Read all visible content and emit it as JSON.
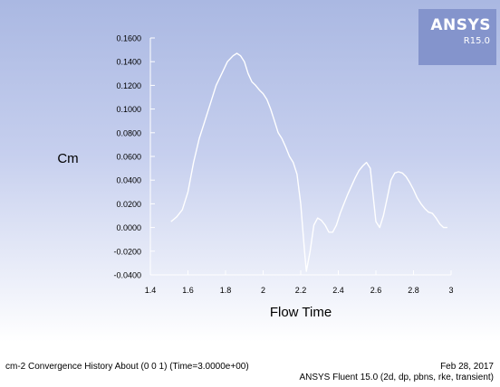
{
  "logo": {
    "brand": "ANSYS",
    "version": "R15.0"
  },
  "footer": {
    "left": "cm-2 Convergence History About (0 0 1)  (Time=3.0000e+00)",
    "date": "Feb 28, 2017",
    "product": "ANSYS Fluent 15.0 (2d, dp, pbns, rke, transient)"
  },
  "colors": {
    "background_top": "#aab8e2",
    "background_bottom": "#ffffff",
    "line": "#ffffff",
    "logo_bg": "#8494cc"
  },
  "chart_data": {
    "type": "line",
    "title": "",
    "xlabel": "Flow Time",
    "ylabel": "Cm",
    "xlim": [
      1.4,
      3.0
    ],
    "ylim": [
      -0.04,
      0.16
    ],
    "xticks": [
      1.4,
      1.6,
      1.8,
      2,
      2.2,
      2.4,
      2.6,
      2.8,
      3
    ],
    "xtick_labels": [
      "1.4",
      "1.6",
      "1.8",
      "2",
      "2.2",
      "2.4",
      "2.6",
      "2.8",
      "3"
    ],
    "yticks": [
      -0.04,
      -0.02,
      0,
      0.02,
      0.04,
      0.06,
      0.08,
      0.1,
      0.12,
      0.14,
      0.16
    ],
    "ytick_labels": [
      "-0.0400",
      "-0.0200",
      "0.0000",
      "0.0200",
      "0.0400",
      "0.0600",
      "0.0800",
      "0.1000",
      "0.1200",
      "0.1400",
      "0.1600"
    ],
    "grid": false,
    "series": [
      {
        "x": [
          1.51,
          1.54,
          1.57,
          1.6,
          1.63,
          1.66,
          1.69,
          1.72,
          1.75,
          1.78,
          1.81,
          1.84,
          1.86,
          1.88,
          1.9,
          1.92,
          1.94,
          1.96,
          1.98,
          2.0,
          2.02,
          2.04,
          2.06,
          2.08,
          2.1,
          2.12,
          2.14,
          2.16,
          2.18,
          2.2,
          2.22,
          2.23,
          2.25,
          2.27,
          2.29,
          2.31,
          2.33,
          2.35,
          2.37,
          2.39,
          2.41,
          2.43,
          2.45,
          2.47,
          2.49,
          2.51,
          2.53,
          2.55,
          2.57,
          2.59,
          2.6,
          2.62,
          2.64,
          2.66,
          2.68,
          2.7,
          2.72,
          2.74,
          2.76,
          2.78,
          2.8,
          2.82,
          2.84,
          2.86,
          2.88,
          2.9,
          2.92,
          2.94,
          2.96,
          2.98
        ],
        "y": [
          0.005,
          0.009,
          0.015,
          0.03,
          0.055,
          0.075,
          0.09,
          0.105,
          0.12,
          0.13,
          0.14,
          0.145,
          0.147,
          0.145,
          0.14,
          0.13,
          0.123,
          0.12,
          0.116,
          0.113,
          0.108,
          0.1,
          0.09,
          0.08,
          0.075,
          0.068,
          0.06,
          0.055,
          0.045,
          0.02,
          -0.02,
          -0.037,
          -0.02,
          0.002,
          0.008,
          0.006,
          0.002,
          -0.004,
          -0.004,
          0.002,
          0.012,
          0.02,
          0.028,
          0.035,
          0.042,
          0.048,
          0.052,
          0.055,
          0.05,
          0.02,
          0.005,
          0.0,
          0.01,
          0.025,
          0.04,
          0.046,
          0.047,
          0.046,
          0.043,
          0.038,
          0.032,
          0.025,
          0.02,
          0.016,
          0.013,
          0.012,
          0.008,
          0.003,
          0.0,
          0.0
        ]
      }
    ]
  }
}
